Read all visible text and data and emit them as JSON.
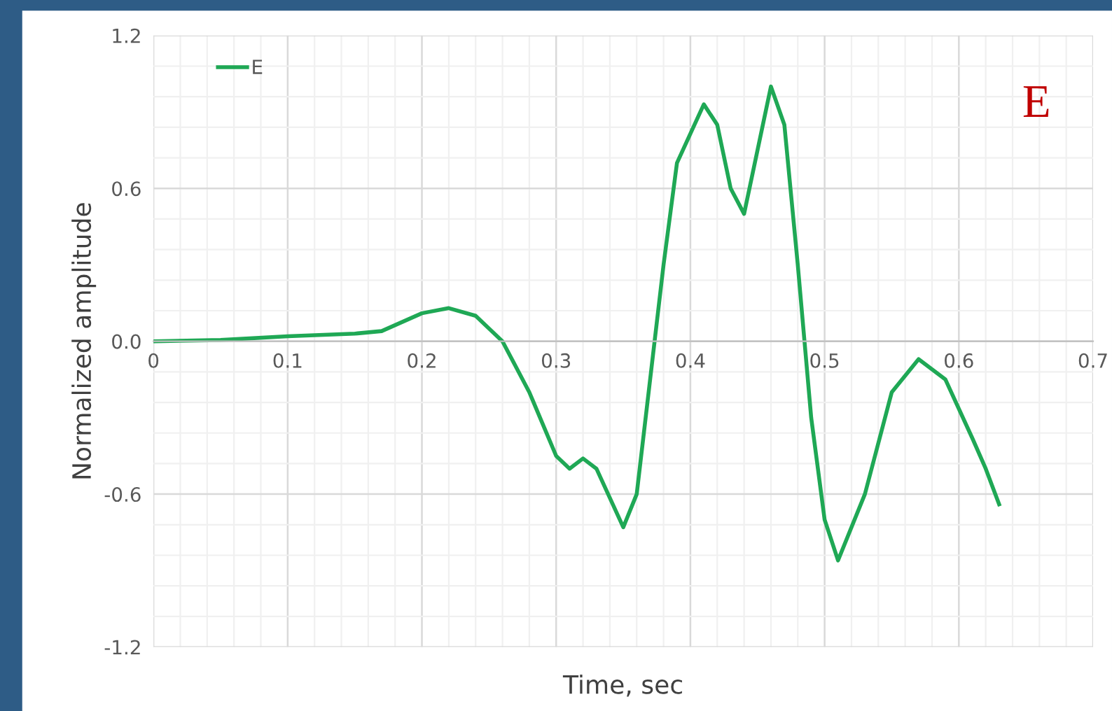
{
  "chart_data": {
    "type": "line",
    "xlabel": "Time, sec",
    "ylabel": "Normalized amplitude",
    "annotations": [
      "E"
    ],
    "x": [
      0,
      0.05,
      0.1,
      0.15,
      0.17,
      0.2,
      0.22,
      0.24,
      0.26,
      0.28,
      0.3,
      0.31,
      0.32,
      0.33,
      0.35,
      0.36,
      0.38,
      0.39,
      0.41,
      0.42,
      0.43,
      0.44,
      0.45,
      0.46,
      0.47,
      0.48,
      0.49,
      0.5,
      0.51,
      0.53,
      0.55,
      0.57,
      0.59,
      0.61,
      0.62,
      0.63
    ],
    "series": [
      {
        "name": "E",
        "color": "#1fa855",
        "values": [
          0,
          0.005,
          0.02,
          0.03,
          0.04,
          0.11,
          0.13,
          0.1,
          0.0,
          -0.2,
          -0.45,
          -0.5,
          -0.46,
          -0.5,
          -0.73,
          -0.6,
          0.3,
          0.7,
          0.93,
          0.85,
          0.6,
          0.5,
          0.75,
          1.0,
          0.85,
          0.3,
          -0.3,
          -0.7,
          -0.86,
          -0.6,
          -0.2,
          -0.07,
          -0.15,
          -0.38,
          -0.5,
          -0.64
        ]
      }
    ],
    "xlim": [
      0,
      0.7
    ],
    "xticks": [
      0,
      0.1,
      0.2,
      0.3,
      0.4,
      0.5,
      0.6,
      0.7
    ],
    "ylim": [
      -1.2,
      1.2
    ],
    "yticks": [
      -1.2,
      -0.6,
      {
        "value": 0,
        "label": "0.0"
      },
      0.6,
      1.2
    ],
    "grid": true,
    "legend": "top left",
    "marker": "none",
    "line_style": "solid"
  }
}
